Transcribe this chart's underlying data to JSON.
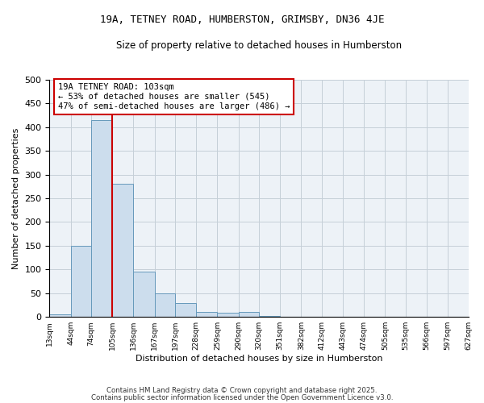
{
  "title1": "19A, TETNEY ROAD, HUMBERSTON, GRIMSBY, DN36 4JE",
  "title2": "Size of property relative to detached houses in Humberston",
  "xlabel": "Distribution of detached houses by size in Humberston",
  "ylabel": "Number of detached properties",
  "bar_edges": [
    13,
    44,
    74,
    105,
    136,
    167,
    197,
    228,
    259,
    290,
    320,
    351,
    382,
    412,
    443,
    474,
    505,
    535,
    566,
    597,
    627
  ],
  "bar_heights": [
    5,
    150,
    415,
    280,
    95,
    50,
    30,
    10,
    8,
    10,
    2,
    1,
    1,
    1,
    1,
    1,
    0,
    0,
    0,
    0
  ],
  "bar_color": "#ccdded",
  "bar_edge_color": "#6699bb",
  "vline_x": 105,
  "vline_color": "#cc0000",
  "annotation_text": "19A TETNEY ROAD: 103sqm\n← 53% of detached houses are smaller (545)\n47% of semi-detached houses are larger (486) →",
  "annotation_box_color": "#cc0000",
  "ylim": [
    0,
    500
  ],
  "yticks": [
    0,
    50,
    100,
    150,
    200,
    250,
    300,
    350,
    400,
    450,
    500
  ],
  "footnote1": "Contains HM Land Registry data © Crown copyright and database right 2025.",
  "footnote2": "Contains public sector information licensed under the Open Government Licence v3.0.",
  "bg_color": "#edf2f7",
  "grid_color": "#c5cfd8"
}
